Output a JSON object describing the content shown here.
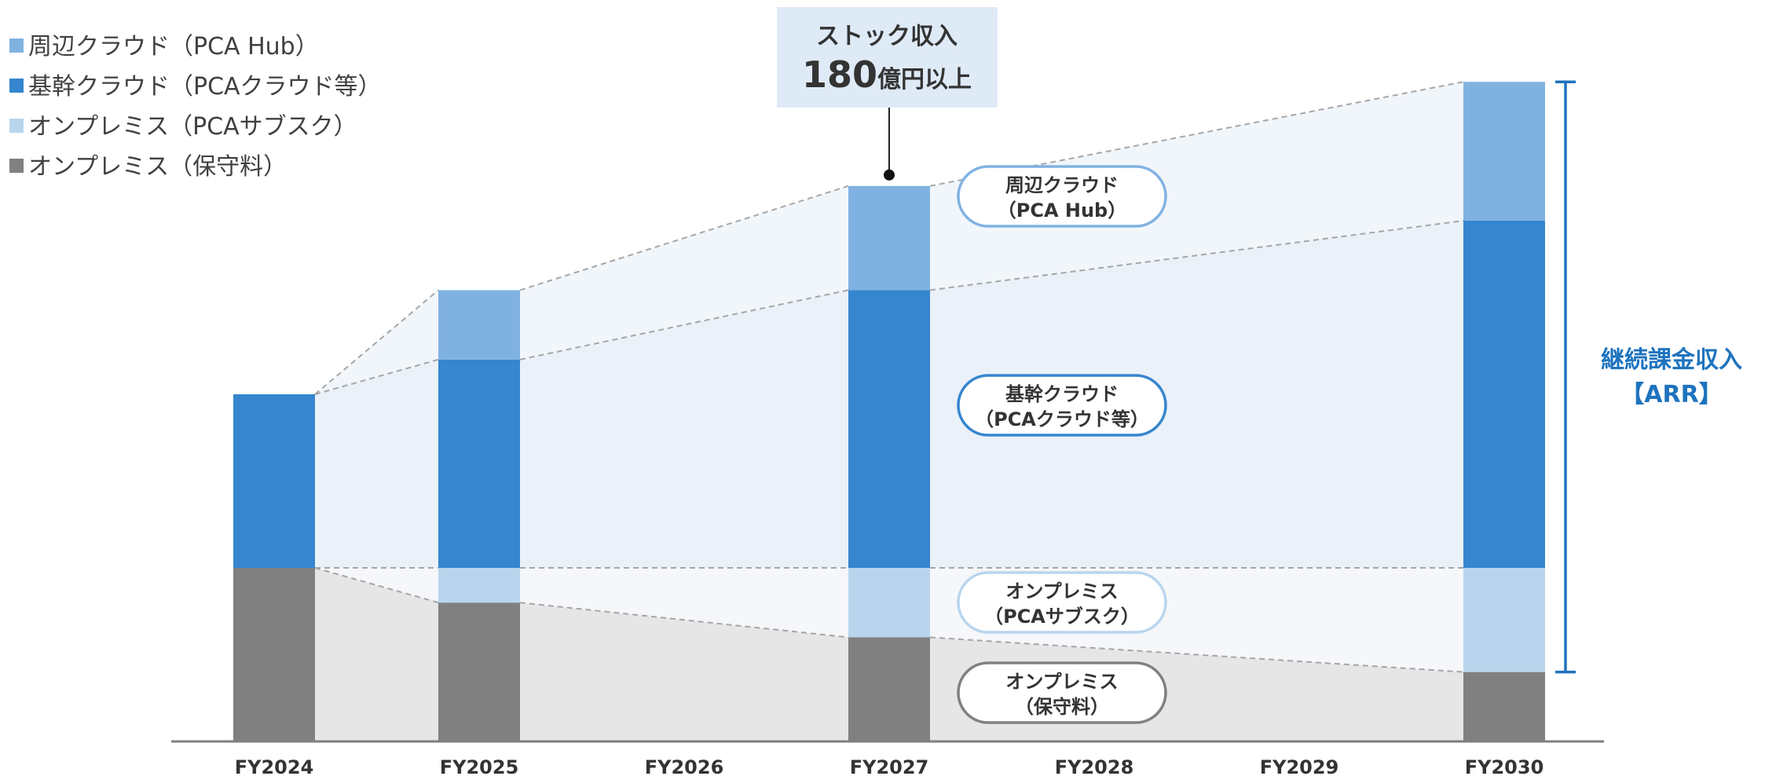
{
  "chart_data": {
    "type": "bar",
    "stacked": true,
    "categories": [
      "FY2024",
      "FY2025",
      "FY2026",
      "FY2027",
      "FY2028",
      "FY2029",
      "FY2030"
    ],
    "series": [
      {
        "name": "オンプレミス（保守料）",
        "color": "#808080",
        "values": [
          25,
          20,
          null,
          15,
          null,
          null,
          10
        ]
      },
      {
        "name": "オンプレミス（PCAサブスク）",
        "color": "#b9d5ee",
        "values": [
          0,
          5,
          null,
          10,
          null,
          null,
          15
        ]
      },
      {
        "name": "基幹クラウド（PCAクラウド等）",
        "color": "#3586ce",
        "values": [
          25,
          30,
          null,
          40,
          null,
          null,
          50
        ]
      },
      {
        "name": "周辺クラウド（PCA Hub）",
        "color": "#80b2e1",
        "values": [
          0,
          10,
          null,
          15,
          null,
          null,
          20
        ]
      }
    ],
    "legend_position": "top-left",
    "ylim": [
      0,
      100
    ],
    "grid": false,
    "callout": {
      "line1": "ストック収入",
      "big": "180",
      "unit": "億円以上",
      "category": "FY2027"
    },
    "segment_labels": [
      {
        "lines": [
          "周辺クラウド",
          "（PCA Hub）"
        ],
        "color": "#80b2e1"
      },
      {
        "lines": [
          "基幹クラウド",
          "（PCAクラウド等）"
        ],
        "color": "#3586ce"
      },
      {
        "lines": [
          "オンプレミス",
          "（PCAサブスク）"
        ],
        "color": "#b9d5ee"
      },
      {
        "lines": [
          "オンプレミス",
          "（保守料）"
        ],
        "color": "#808080"
      }
    ],
    "bracket": {
      "lines": [
        "継続課金収入",
        "【ARR】"
      ],
      "color": "#1e73be"
    }
  }
}
